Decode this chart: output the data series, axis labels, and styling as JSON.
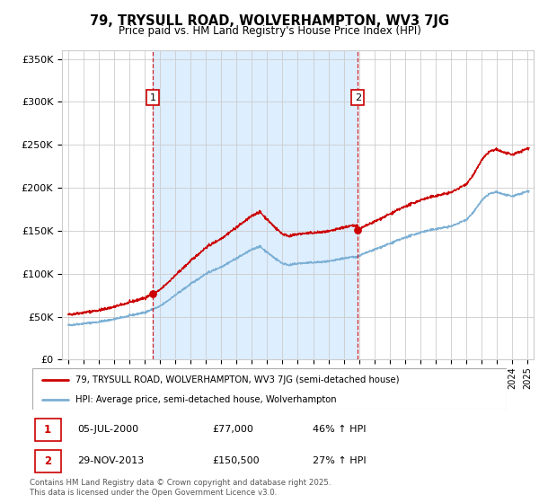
{
  "title": "79, TRYSULL ROAD, WOLVERHAMPTON, WV3 7JG",
  "subtitle": "Price paid vs. HM Land Registry's House Price Index (HPI)",
  "ylim": [
    0,
    360000
  ],
  "yticks": [
    0,
    50000,
    100000,
    150000,
    200000,
    250000,
    300000,
    350000
  ],
  "ytick_labels": [
    "£0",
    "£50K",
    "£100K",
    "£150K",
    "£200K",
    "£250K",
    "£300K",
    "£350K"
  ],
  "xlim_start": 1994.6,
  "xlim_end": 2025.4,
  "marker1": {
    "date_x": 2000.54,
    "value": 77000,
    "label": "1",
    "date_str": "05-JUL-2000",
    "price": "£77,000",
    "pct": "46% ↑ HPI"
  },
  "marker2": {
    "date_x": 2013.92,
    "value": 150500,
    "label": "2",
    "date_str": "29-NOV-2013",
    "price": "£150,500",
    "pct": "27% ↑ HPI"
  },
  "legend_line1": "79, TRYSULL ROAD, WOLVERHAMPTON, WV3 7JG (semi-detached house)",
  "legend_line2": "HPI: Average price, semi-detached house, Wolverhampton",
  "footer": "Contains HM Land Registry data © Crown copyright and database right 2025.\nThis data is licensed under the Open Government Licence v3.0.",
  "line_color_red": "#cc0000",
  "line_color_blue": "#7bafd4",
  "shading_color": "#ddeeff",
  "background_color": "#ffffff",
  "grid_color": "#cccccc"
}
